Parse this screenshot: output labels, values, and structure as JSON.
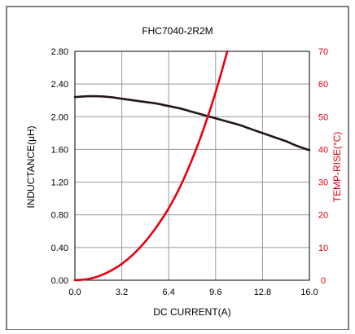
{
  "chart_data": {
    "type": "line",
    "title": "FHC7040-2R2M",
    "xlabel": "DC CURRENT(A)",
    "ylabel": "INDUCTANCE(μH)",
    "y2label": "TEMP-RISE(°C)",
    "xlim": [
      0,
      16
    ],
    "ylim": [
      0,
      2.8
    ],
    "y2lim": [
      0,
      70
    ],
    "grid": true,
    "x_ticks": [
      "0.0",
      "3.2",
      "6.4",
      "9.6",
      "12.8",
      "16.0"
    ],
    "y_ticks": [
      "0.00",
      "0.40",
      "0.80",
      "1.20",
      "1.60",
      "2.00",
      "2.40",
      "2.80"
    ],
    "y2_ticks": [
      "0",
      "10",
      "20",
      "30",
      "40",
      "50",
      "60",
      "70"
    ],
    "colors": {
      "inductance": "#231815",
      "temp_rise": "#e60012",
      "grid": "#9a9a9a"
    },
    "series": [
      {
        "axis": "left",
        "x": [
          0,
          0.8,
          1.6,
          2.4,
          3.2,
          4.0,
          4.8,
          5.6,
          6.4,
          7.2,
          8.0,
          8.8,
          9.6,
          10.4,
          11.2,
          12.0,
          12.8,
          13.6,
          14.4,
          15.2,
          16.0
        ],
        "values": [
          2.24,
          2.25,
          2.25,
          2.24,
          2.22,
          2.2,
          2.18,
          2.16,
          2.13,
          2.1,
          2.06,
          2.02,
          1.98,
          1.94,
          1.9,
          1.85,
          1.8,
          1.75,
          1.7,
          1.64,
          1.59
        ]
      },
      {
        "axis": "right",
        "x": [
          0,
          0.8,
          1.6,
          2.4,
          3.2,
          4.0,
          4.8,
          5.6,
          6.4,
          7.2,
          8.0,
          8.8,
          9.6,
          10.4
        ],
        "values": [
          0,
          0.3,
          1.2,
          2.8,
          5.0,
          8.0,
          11.8,
          16.5,
          22.0,
          28.8,
          37.0,
          46.5,
          57.5,
          70.0
        ]
      }
    ]
  }
}
